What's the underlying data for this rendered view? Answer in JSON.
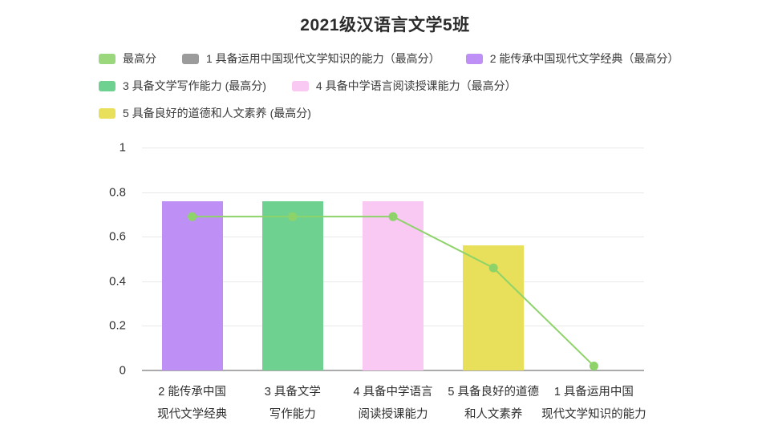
{
  "title": "2021级汉语言文学5班",
  "colors": {
    "line_green": "#8dd36a",
    "legend_green": "#9bd77d",
    "gray": "#9b9b9b",
    "purple": "#be90f6",
    "green": "#6fd190",
    "pink": "#f9c9f3",
    "yellow": "#e8df5a",
    "gridline": "#e9e9e9",
    "axis": "#ababab",
    "text": "#2f2f2f"
  },
  "legend": {
    "rows": [
      [
        {
          "label": "最高分",
          "color": "#9bd77d"
        },
        {
          "label": "1 具备运用中国现代文学知识的能力（最高分）",
          "color": "#9b9b9b"
        },
        {
          "label": "2 能传承中国现代文学经典（最高分）",
          "color": "#be90f6"
        }
      ],
      [
        {
          "label": "3 具备文学写作能力 (最高分)",
          "color": "#6fd190"
        },
        {
          "label": "4 具备中学语言阅读授课能力（最高分）",
          "color": "#f9c9f3"
        }
      ],
      [
        {
          "label": "5 具备良好的道德和人文素养 (最高分)",
          "color": "#e8df5a"
        }
      ]
    ]
  },
  "chart_data": {
    "type": "bar",
    "title": "2021级汉语言文学5班",
    "categories": [
      "2 能传承中国现代文学经典",
      "3 具备文学写作能力",
      "4 具备中学语言阅读授课能力",
      "5 具备良好的道德和人文素养",
      "1 具备运用中国现代文学知识的能力"
    ],
    "x_tick_lines": [
      [
        "2 能传承中国",
        "现代文学经典"
      ],
      [
        "3 具备文学",
        "写作能力"
      ],
      [
        "4 具备中学语言",
        "阅读授课能力"
      ],
      [
        "5 具备良好的道德",
        "和人文素养"
      ],
      [
        "1 具备运用中国",
        "现代文学知识的能力"
      ]
    ],
    "series": [
      {
        "name": "2 能传承中国现代文学经典（最高分）",
        "type": "bar",
        "color": "#be90f6",
        "category_index": 0,
        "value": 0.76
      },
      {
        "name": "3 具备文学写作能力 (最高分)",
        "type": "bar",
        "color": "#6fd190",
        "category_index": 1,
        "value": 0.76
      },
      {
        "name": "4 具备中学语言阅读授课能力（最高分）",
        "type": "bar",
        "color": "#f9c9f3",
        "category_index": 2,
        "value": 0.76
      },
      {
        "name": "5 具备良好的道德和人文素养 (最高分)",
        "type": "bar",
        "color": "#e8df5a",
        "category_index": 3,
        "value": 0.56
      },
      {
        "name": "1 具备运用中国现代文学知识的能力（最高分）",
        "type": "bar",
        "color": "#9b9b9b",
        "category_index": 4,
        "value": 0
      },
      {
        "name": "最高分",
        "type": "line",
        "color": "#8dd36a",
        "values": [
          0.69,
          0.69,
          0.69,
          0.46,
          0.02
        ]
      }
    ],
    "xlabel": "",
    "ylabel": "",
    "ylim": [
      0,
      1
    ],
    "yticks": [
      0,
      0.2,
      0.4,
      0.6,
      0.8,
      1
    ],
    "ytick_labels": [
      "0",
      "0.2",
      "0.4",
      "0.6",
      "0.8",
      "1"
    ],
    "grid": true,
    "legend_position": "top-left"
  }
}
